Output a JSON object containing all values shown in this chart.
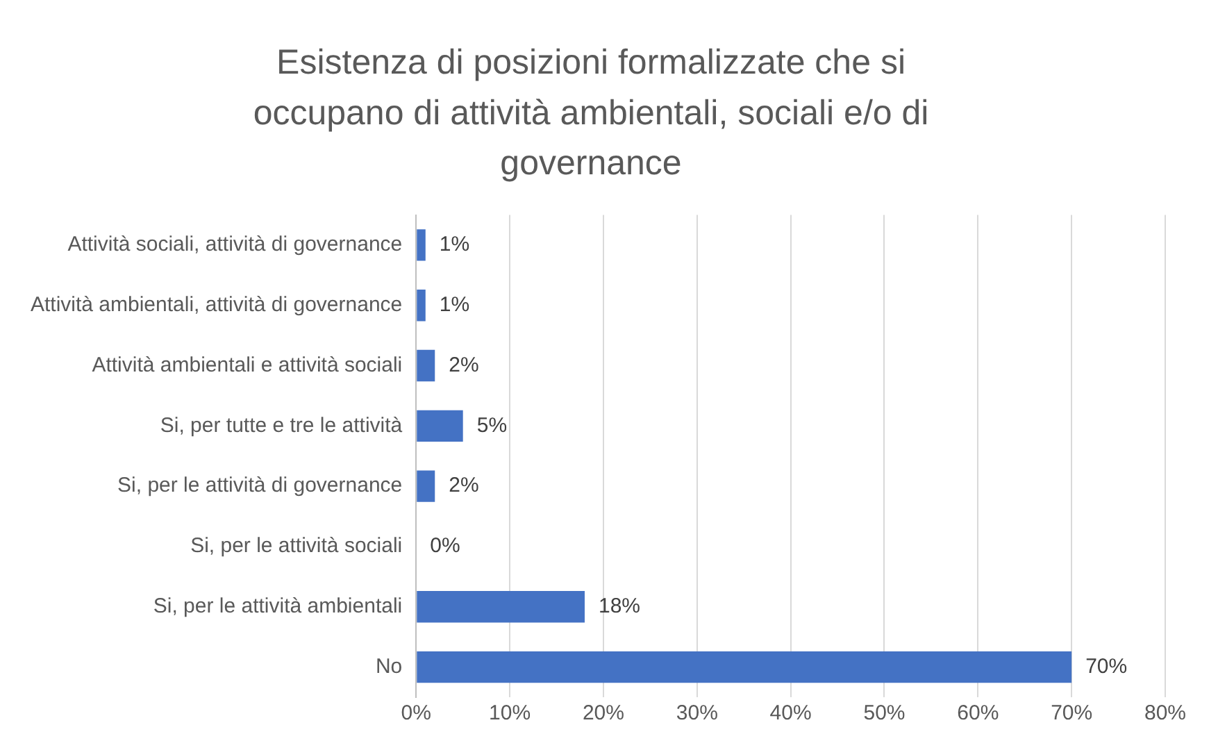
{
  "chart_data": {
    "type": "bar",
    "orientation": "horizontal",
    "title": "Esistenza di posizioni formalizzate che si occupano di attività ambientali, sociali e/o di governance",
    "categories": [
      "Attività sociali, attività di governance",
      "Attività ambientali, attività di governance",
      "Attività ambientali e attività sociali",
      "Si, per tutte e tre le attività",
      "Si, per le attività di governance",
      "Si, per le attività sociali",
      "Si, per le attività ambientali",
      "No"
    ],
    "values": [
      1,
      1,
      2,
      5,
      2,
      0,
      18,
      70
    ],
    "value_labels": [
      "1%",
      "1%",
      "2%",
      "5%",
      "2%",
      "0%",
      "18%",
      "70%"
    ],
    "color": "#4472c4",
    "xlim": [
      0,
      80
    ],
    "xticks": [
      {
        "value": 0,
        "label": "0%"
      },
      {
        "value": 10,
        "label": "10%"
      },
      {
        "value": 20,
        "label": "20%"
      },
      {
        "value": 30,
        "label": "30%"
      },
      {
        "value": 40,
        "label": "40%"
      },
      {
        "value": 50,
        "label": "50%"
      },
      {
        "value": 60,
        "label": "60%"
      },
      {
        "value": 70,
        "label": "70%"
      },
      {
        "value": 80,
        "label": "80%"
      }
    ],
    "grid": "x",
    "legend": false
  }
}
